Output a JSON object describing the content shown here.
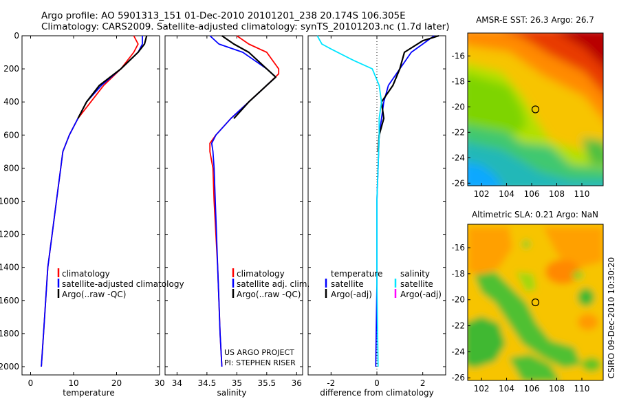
{
  "header": {
    "title_line1": "Argo profile: AO 5901313_151 01-Dec-2010 20101201_238 20.174S 106.305E",
    "title_line2": "Climatology: CARS2009. Satellite-adjusted climatology: synTS_20101203.nc (1.7d later)",
    "side_label": "CSIRO 09-Dec-2010 10:30:20"
  },
  "colors": {
    "clim": "#ff0000",
    "sat": "#0000ff",
    "argo": "#000000",
    "sal_sat": "#00e5ff",
    "sal_argo": "#ff00ff"
  },
  "chart_data": [
    {
      "type": "line",
      "id": "temperature",
      "xlabel": "temperature",
      "xlim": [
        -2,
        30
      ],
      "xticks": [
        0,
        10,
        20,
        30
      ],
      "ylim": [
        2050,
        0
      ],
      "yticks": [
        0,
        200,
        400,
        600,
        800,
        1000,
        1200,
        1400,
        1600,
        1800,
        2000
      ],
      "legend": {
        "placement": "lower-right",
        "entries": [
          "climatology",
          "satellite-adjusted climatology",
          "Argo(..raw -QC)"
        ]
      },
      "series": [
        {
          "name": "climatology",
          "color_key": "clim",
          "points": [
            [
              24,
              0
            ],
            [
              25,
              50
            ],
            [
              24,
              100
            ],
            [
              21,
              200
            ],
            [
              17,
              300
            ],
            [
              14,
              400
            ],
            [
              11,
              500
            ],
            [
              9,
              600
            ],
            [
              7.5,
              700
            ],
            [
              7,
              800
            ],
            [
              6,
              1000
            ],
            [
              5,
              1200
            ],
            [
              4,
              1400
            ],
            [
              3.5,
              1600
            ],
            [
              3,
              1800
            ],
            [
              2.5,
              2000
            ]
          ]
        },
        {
          "name": "satellite-adjusted climatology",
          "color_key": "sat",
          "points": [
            [
              26,
              0
            ],
            [
              26,
              50
            ],
            [
              25,
              100
            ],
            [
              21,
              200
            ],
            [
              16.5,
              300
            ],
            [
              13,
              400
            ],
            [
              11,
              500
            ],
            [
              9,
              600
            ],
            [
              7.5,
              700
            ],
            [
              7,
              800
            ],
            [
              6,
              1000
            ],
            [
              5,
              1200
            ],
            [
              4,
              1400
            ],
            [
              3.5,
              1600
            ],
            [
              3,
              1800
            ],
            [
              2.5,
              2000
            ]
          ]
        },
        {
          "name": "Argo(..raw -QC)",
          "color_key": "argo",
          "points": [
            [
              27,
              0
            ],
            [
              26.5,
              50
            ],
            [
              25,
              100
            ],
            [
              21,
              200
            ],
            [
              16,
              300
            ],
            [
              13,
              400
            ],
            [
              11,
              500
            ]
          ]
        }
      ]
    },
    {
      "type": "line",
      "id": "salinity",
      "xlabel": "salinity",
      "xlim": [
        33.8,
        36.1
      ],
      "xticks": [
        34,
        34.5,
        35,
        35.5,
        36
      ],
      "ylim": [
        2050,
        0
      ],
      "legend": {
        "placement": "lower-right",
        "entries": [
          "climatology",
          "satellite adj. clim.",
          "Argo(..raw -QC)"
        ]
      },
      "annotation": [
        "US ARGO PROJECT",
        "PI: STEPHEN RISER"
      ],
      "series": [
        {
          "name": "climatology",
          "color_key": "clim",
          "points": [
            [
              35,
              0
            ],
            [
              35.2,
              50
            ],
            [
              35.5,
              100
            ],
            [
              35.7,
              200
            ],
            [
              35.7,
              230
            ],
            [
              35.5,
              300
            ],
            [
              35.2,
              400
            ],
            [
              34.9,
              500
            ],
            [
              34.65,
              600
            ],
            [
              34.55,
              650
            ],
            [
              34.55,
              700
            ],
            [
              34.6,
              800
            ],
            [
              34.62,
              1000
            ],
            [
              34.65,
              1200
            ],
            [
              34.68,
              1400
            ],
            [
              34.7,
              1600
            ],
            [
              34.72,
              1800
            ],
            [
              34.75,
              2000
            ]
          ]
        },
        {
          "name": "satellite adj. clim.",
          "color_key": "sat",
          "points": [
            [
              34.55,
              0
            ],
            [
              34.7,
              50
            ],
            [
              35.1,
              100
            ],
            [
              35.5,
              200
            ],
            [
              35.65,
              250
            ],
            [
              35.5,
              300
            ],
            [
              35.2,
              400
            ],
            [
              34.9,
              500
            ],
            [
              34.65,
              600
            ],
            [
              34.58,
              650
            ],
            [
              34.6,
              700
            ],
            [
              34.62,
              800
            ],
            [
              34.64,
              1000
            ],
            [
              34.66,
              1200
            ],
            [
              34.68,
              1400
            ],
            [
              34.7,
              1600
            ],
            [
              34.72,
              1800
            ],
            [
              34.75,
              2000
            ]
          ]
        },
        {
          "name": "Argo(..raw -QC)",
          "color_key": "argo",
          "points": [
            [
              34.75,
              0
            ],
            [
              34.95,
              50
            ],
            [
              35.2,
              100
            ],
            [
              35.5,
              200
            ],
            [
              35.65,
              250
            ],
            [
              35.5,
              300
            ],
            [
              35.2,
              400
            ],
            [
              34.95,
              500
            ]
          ]
        }
      ]
    },
    {
      "type": "line",
      "id": "difference",
      "xlabel": "difference from climatology",
      "xlim": [
        -3,
        3
      ],
      "xticks": [
        -2,
        0,
        2
      ],
      "ylim": [
        2050,
        0
      ],
      "legend": {
        "placement": "lower-right",
        "headers": [
          "temperature",
          "salinity"
        ],
        "entries": [
          "satellite",
          "Argo(-adj)",
          "satellite",
          "Argo(-adj)"
        ]
      },
      "series": [
        {
          "name": "temperature satellite",
          "color_key": "sat",
          "points": [
            [
              2.5,
              0
            ],
            [
              2,
              50
            ],
            [
              1.5,
              100
            ],
            [
              1,
              200
            ],
            [
              0.5,
              300
            ],
            [
              0.3,
              400
            ],
            [
              0.2,
              500
            ],
            [
              0.1,
              600
            ],
            [
              0.05,
              800
            ],
            [
              0,
              1000
            ],
            [
              0,
              1500
            ],
            [
              -0.05,
              2000
            ]
          ]
        },
        {
          "name": "temperature Argo(-adj)",
          "color_key": "argo",
          "points": [
            [
              2.7,
              0
            ],
            [
              2,
              30
            ],
            [
              1.2,
              100
            ],
            [
              1,
              200
            ],
            [
              0.7,
              300
            ],
            [
              0.2,
              400
            ],
            [
              0.3,
              500
            ],
            [
              0.1,
              600
            ],
            [
              0.05,
              700
            ]
          ]
        },
        {
          "name": "salinity satellite",
          "color_key": "sal_sat",
          "points": [
            [
              -2.6,
              0
            ],
            [
              -2.4,
              50
            ],
            [
              -2,
              80
            ],
            [
              -1,
              150
            ],
            [
              -0.2,
              200
            ],
            [
              0.1,
              300
            ],
            [
              0.2,
              400
            ],
            [
              0.1,
              500
            ],
            [
              0.1,
              600
            ],
            [
              0.05,
              800
            ],
            [
              0,
              1000
            ],
            [
              0,
              1500
            ],
            [
              0.05,
              2000
            ]
          ]
        },
        {
          "name": "salinity Argo(-adj)",
          "color_key": "sal_argo",
          "points": []
        }
      ]
    },
    {
      "type": "heatmap",
      "id": "sst_map",
      "title": "AMSR-E SST: 26.3 Argo: 26.7",
      "xlim": [
        100.9,
        111.7
      ],
      "ylim": [
        -26.2,
        -14.2
      ],
      "xticks": [
        102,
        104,
        106,
        108,
        110
      ],
      "yticks": [
        -16,
        -18,
        -20,
        -22,
        -24,
        -26
      ],
      "argo_position": [
        106.3,
        -20.2
      ]
    },
    {
      "type": "heatmap",
      "id": "sla_map",
      "title": "Altimetric SLA: 0.21 Argo: NaN",
      "xlim": [
        100.9,
        111.7
      ],
      "ylim": [
        -26.2,
        -14.2
      ],
      "xticks": [
        102,
        104,
        106,
        108,
        110
      ],
      "yticks": [
        -16,
        -18,
        -20,
        -22,
        -24,
        -26
      ],
      "argo_position": [
        106.3,
        -20.2
      ]
    }
  ]
}
